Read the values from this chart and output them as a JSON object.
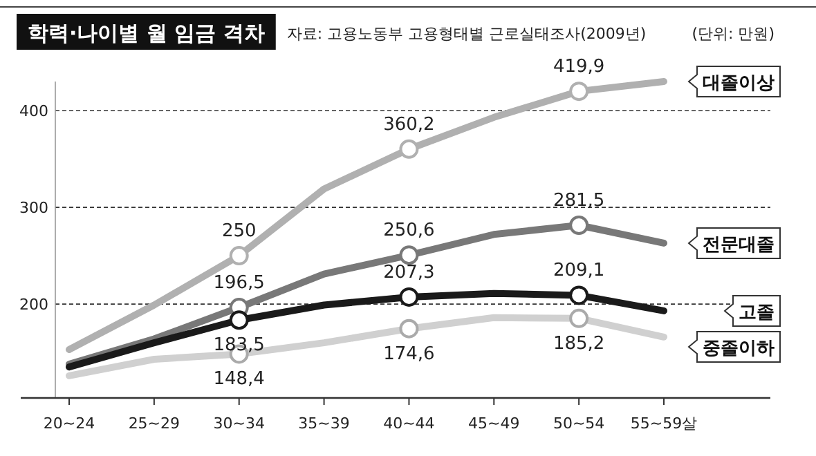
{
  "chart_data": {
    "type": "line",
    "title": "학력·나이별 월 임금 격차",
    "annotations": [
      "자료: 고용노동부 고용형태별 근로실태조사(2009년)",
      "(단위: 만원)"
    ],
    "categories": [
      "20~24",
      "25~29",
      "30~34",
      "35~39",
      "40~44",
      "45~49",
      "50~54",
      "55~59살"
    ],
    "ylim": [
      103,
      430
    ],
    "yticks": [
      200,
      300,
      400
    ],
    "grid": "y",
    "legend": "right",
    "line_style": "solid",
    "series": [
      {
        "name": "대졸이상",
        "color": "#b0b0b0",
        "values": [
          153,
          199,
          250,
          319,
          360.2,
          393,
          419.9,
          430
        ],
        "value_labels": [
          null,
          null,
          "250",
          null,
          "360,2",
          null,
          "419,9",
          null
        ]
      },
      {
        "name": "전문대졸",
        "color": "#787878",
        "values": [
          138,
          164,
          196.5,
          231,
          250.6,
          272,
          281.5,
          263
        ],
        "value_labels": [
          null,
          null,
          "196,5",
          null,
          "250,6",
          null,
          "281,5",
          null
        ]
      },
      {
        "name": "고졸",
        "color": "#1a1a1a",
        "values": [
          135,
          160,
          183.5,
          199,
          207.3,
          211,
          209.1,
          193
        ],
        "value_labels": [
          null,
          null,
          "183,5",
          null,
          "207,3",
          null,
          "209,1",
          null
        ]
      },
      {
        "name": "중졸이하",
        "color": "#d0d0d0",
        "values": [
          126,
          143,
          148.4,
          160,
          174.6,
          186,
          185.2,
          166
        ],
        "value_labels": [
          null,
          null,
          "148,4",
          null,
          "174,6",
          null,
          "185,2",
          null
        ]
      }
    ]
  }
}
